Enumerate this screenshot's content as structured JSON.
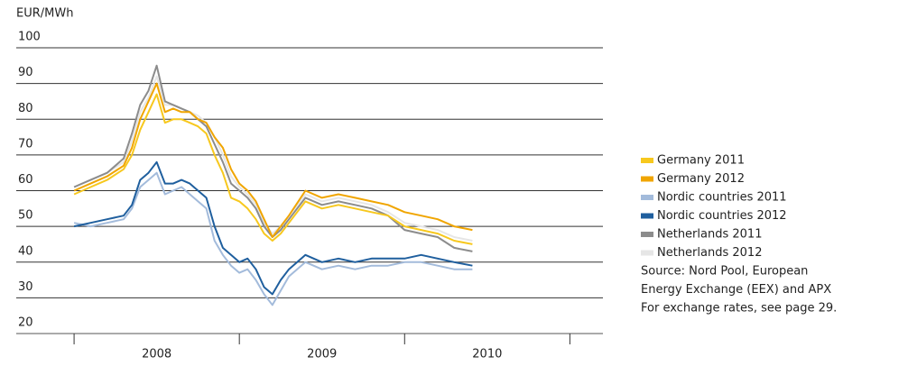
{
  "chart_data": {
    "type": "line",
    "y_label": "EUR/MWh",
    "x": [
      2008.0,
      2008.1,
      2008.2,
      2008.3,
      2008.35,
      2008.4,
      2008.45,
      2008.5,
      2008.55,
      2008.6,
      2008.65,
      2008.7,
      2008.75,
      2008.8,
      2008.85,
      2008.9,
      2008.95,
      2009.0,
      2009.05,
      2009.1,
      2009.15,
      2009.2,
      2009.25,
      2009.3,
      2009.4,
      2009.5,
      2009.6,
      2009.7,
      2009.8,
      2009.9,
      2010.0,
      2010.1,
      2010.2,
      2010.3,
      2010.41
    ],
    "series": [
      {
        "name": "Germany 2011",
        "color": "#f7c81e",
        "values": [
          59,
          61,
          63,
          66,
          70,
          77,
          82,
          87,
          79,
          80,
          80,
          79,
          78,
          76,
          70,
          65,
          58,
          57,
          55,
          52,
          48,
          46,
          48,
          51,
          57,
          55,
          56,
          55,
          54,
          53,
          50,
          49,
          48,
          46,
          45
        ]
      },
      {
        "name": "Germany 2012",
        "color": "#f0a500",
        "values": [
          60,
          62,
          64,
          67,
          72,
          80,
          85,
          90,
          82,
          83,
          82,
          82,
          80,
          79,
          75,
          72,
          66,
          62,
          60,
          57,
          52,
          47,
          50,
          53,
          60,
          58,
          59,
          58,
          57,
          56,
          54,
          53,
          52,
          50,
          49
        ]
      },
      {
        "name": "Nordic countries 2011",
        "color": "#a3bbdb",
        "values": [
          51,
          50,
          51,
          52,
          55,
          61,
          63,
          65,
          59,
          60,
          61,
          59,
          57,
          55,
          46,
          42,
          39,
          37,
          38,
          35,
          31,
          28,
          32,
          36,
          40,
          38,
          39,
          38,
          39,
          39,
          40,
          40,
          39,
          38,
          38
        ]
      },
      {
        "name": "Nordic countries 2012",
        "color": "#1f5f9e",
        "values": [
          50,
          51,
          52,
          53,
          56,
          63,
          65,
          68,
          62,
          62,
          63,
          62,
          60,
          58,
          50,
          44,
          42,
          40,
          41,
          38,
          33,
          31,
          35,
          38,
          42,
          40,
          41,
          40,
          41,
          41,
          41,
          42,
          41,
          40,
          39
        ]
      },
      {
        "name": "Netherlands 2011",
        "color": "#8c8c8c",
        "values": [
          61,
          63,
          65,
          69,
          76,
          84,
          88,
          95,
          85,
          84,
          83,
          82,
          80,
          78,
          73,
          68,
          62,
          60,
          58,
          55,
          50,
          47,
          49,
          52,
          58,
          56,
          57,
          56,
          55,
          53,
          49,
          48,
          47,
          44,
          43
        ]
      },
      {
        "name": "Netherlands 2012",
        "color": "#e6e6e6",
        "values": [
          61,
          63,
          65,
          68,
          74,
          82,
          86,
          92,
          84,
          84,
          83,
          82,
          81,
          79,
          75,
          70,
          64,
          61,
          59,
          56,
          51,
          48,
          50,
          53,
          59,
          57,
          58,
          57,
          56,
          54,
          51,
          50,
          49,
          47,
          46
        ]
      }
    ],
    "xlim": [
      2007.65,
      2011.2
    ],
    "xticks": [
      {
        "value": 2008.5,
        "label": "2008"
      },
      {
        "value": 2009.5,
        "label": "2009"
      },
      {
        "value": 2010.5,
        "label": "2010"
      }
    ],
    "xtick_marks": [
      2008,
      2009,
      2010,
      2011
    ],
    "ylim": [
      20,
      100
    ],
    "yticks": [
      20,
      30,
      40,
      50,
      60,
      70,
      80,
      90,
      100
    ],
    "grid": true,
    "legend": "right",
    "notes": [
      "Source: Nord Pool, European",
      "Energy Exchange (EEX) and APX",
      "For exchange rates, see page 29."
    ]
  }
}
